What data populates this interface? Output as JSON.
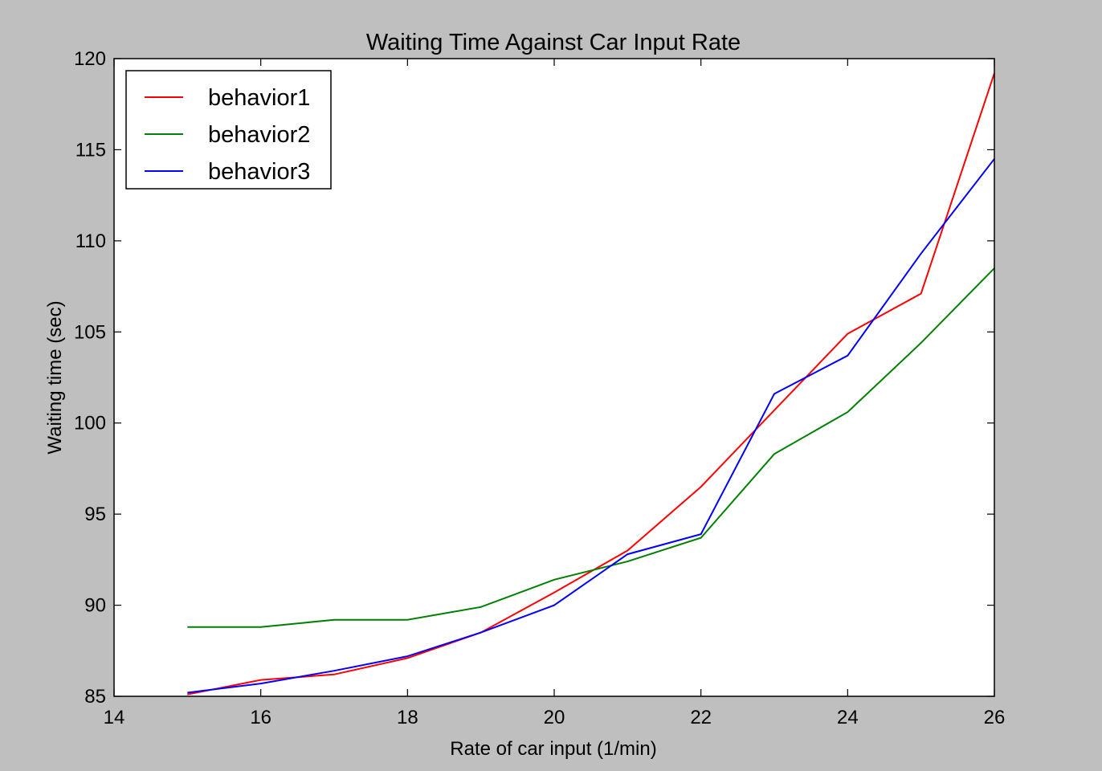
{
  "chart_data": {
    "type": "line",
    "title": "Waiting Time Against Car Input Rate",
    "xlabel": "Rate of car input (1/min)",
    "ylabel": "Waiting time (sec)",
    "xlim": [
      14,
      26
    ],
    "ylim": [
      85,
      120
    ],
    "xticks": [
      14,
      16,
      18,
      20,
      22,
      24,
      26
    ],
    "yticks": [
      85,
      90,
      95,
      100,
      105,
      110,
      115,
      120
    ],
    "grid": false,
    "legend_position": "top-left",
    "x": [
      15,
      16,
      17,
      18,
      19,
      20,
      21,
      22,
      23,
      24,
      25,
      26
    ],
    "series": [
      {
        "name": "behavior1",
        "color": "#ff0000",
        "values": [
          85.1,
          85.9,
          86.2,
          87.1,
          88.5,
          90.7,
          93.0,
          96.5,
          100.7,
          104.9,
          107.1,
          119.2
        ]
      },
      {
        "name": "behavior2",
        "color": "#008000",
        "values": [
          88.8,
          88.8,
          89.2,
          89.2,
          89.9,
          91.4,
          92.4,
          93.7,
          98.3,
          100.6,
          104.4,
          108.5
        ]
      },
      {
        "name": "behavior3",
        "color": "#0000ff",
        "values": [
          85.2,
          85.7,
          86.4,
          87.2,
          88.5,
          90.0,
          92.8,
          93.9,
          101.6,
          103.7,
          109.3,
          114.5
        ]
      }
    ]
  }
}
